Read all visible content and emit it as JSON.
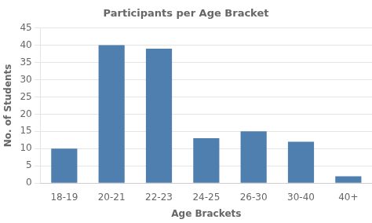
{
  "chart_data": {
    "type": "bar",
    "title": "Participants per Age Bracket",
    "xlabel": "Age Brackets",
    "ylabel": "No. of Students",
    "categories": [
      "18-19",
      "20-21",
      "22-23",
      "24-25",
      "26-30",
      "30-40",
      "40+"
    ],
    "values": [
      10,
      40,
      39,
      13,
      15,
      12,
      2
    ],
    "color": "#4e7faf",
    "ylim": [
      0,
      45
    ],
    "yticks": [
      0,
      5,
      10,
      15,
      20,
      25,
      30,
      35,
      40,
      45
    ],
    "grid": true
  }
}
